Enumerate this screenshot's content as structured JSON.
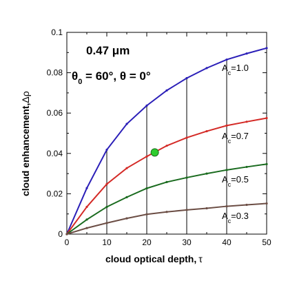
{
  "chart_data": {
    "type": "line",
    "xlabel": "cloud optical depth,",
    "xlabel_symbol": "τ",
    "ylabel": "cloud enhancement,",
    "ylabel_symbol": "Δρ",
    "xlim": [
      0,
      50
    ],
    "ylim": [
      0,
      0.1
    ],
    "xticks": [
      0,
      10,
      20,
      30,
      40,
      50
    ],
    "yticks": [
      "0",
      "0.02",
      "0.04",
      "0.06",
      "0.08",
      "0.1"
    ],
    "yticks_values": [
      0,
      0.02,
      0.04,
      0.06,
      0.08,
      0.1
    ],
    "grid": false,
    "annotations": {
      "wavelength": "0.47 μm",
      "angles_prefix": "θ",
      "angles_sub": "0",
      "angles_mid": " = 60°, θ = 0°"
    },
    "x": [
      0,
      5,
      10,
      15,
      20,
      25,
      30,
      35,
      40,
      45,
      50
    ],
    "series": [
      {
        "label_main": "A",
        "label_sub": "c",
        "label_value": "=1.0",
        "color": "#2b1fb8",
        "values": [
          0,
          0.0228,
          0.0418,
          0.0546,
          0.0637,
          0.0712,
          0.0773,
          0.0823,
          0.0865,
          0.0895,
          0.0922
        ]
      },
      {
        "label_main": "A",
        "label_sub": "c",
        "label_value": "=0.7",
        "color": "#d42a26",
        "values": [
          0,
          0.0135,
          0.0248,
          0.0327,
          0.0385,
          0.0438,
          0.0478,
          0.051,
          0.0538,
          0.0557,
          0.0575
        ]
      },
      {
        "label_main": "A",
        "label_sub": "c",
        "label_value": "=0.5",
        "color": "#1a6b1f",
        "values": [
          0,
          0.0072,
          0.0135,
          0.0183,
          0.0227,
          0.0258,
          0.028,
          0.03,
          0.0318,
          0.0333,
          0.0347
        ]
      },
      {
        "label_main": "A",
        "label_sub": "c",
        "label_value": "=0.3",
        "color": "#6b4d44",
        "values": [
          0,
          0.003,
          0.0055,
          0.0078,
          0.0098,
          0.011,
          0.012,
          0.0128,
          0.0138,
          0.0145,
          0.0152
        ]
      }
    ],
    "vertical_lines_x": [
      10,
      20,
      30,
      40
    ],
    "highlight_point": {
      "x": 22,
      "y": 0.0405,
      "color": "#2ecc2e"
    }
  }
}
